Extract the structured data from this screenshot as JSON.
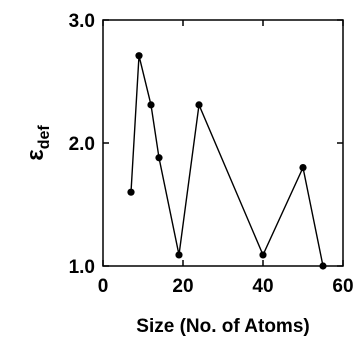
{
  "chart_data": {
    "type": "line",
    "title": "",
    "xlabel": "Size (No. of Atoms)",
    "ylabel_main": "ε",
    "ylabel_sub": "def",
    "xlim": [
      0,
      60
    ],
    "ylim": [
      1.0,
      3.0
    ],
    "x_ticks": [
      0,
      20,
      40,
      60
    ],
    "x_tick_labels": [
      "0",
      "20",
      "40",
      "60"
    ],
    "y_ticks": [
      1.0,
      2.0,
      3.0
    ],
    "y_tick_labels": [
      "1.0",
      "2.0",
      "3.0"
    ],
    "grid": false,
    "line_color": "#000000",
    "series": [
      {
        "x": [
          7,
          9,
          12,
          14,
          19,
          24,
          40,
          50,
          55
        ],
        "y": [
          1.6,
          2.71,
          2.31,
          1.88,
          1.09,
          2.31,
          1.09,
          1.8,
          1.0
        ]
      }
    ]
  }
}
